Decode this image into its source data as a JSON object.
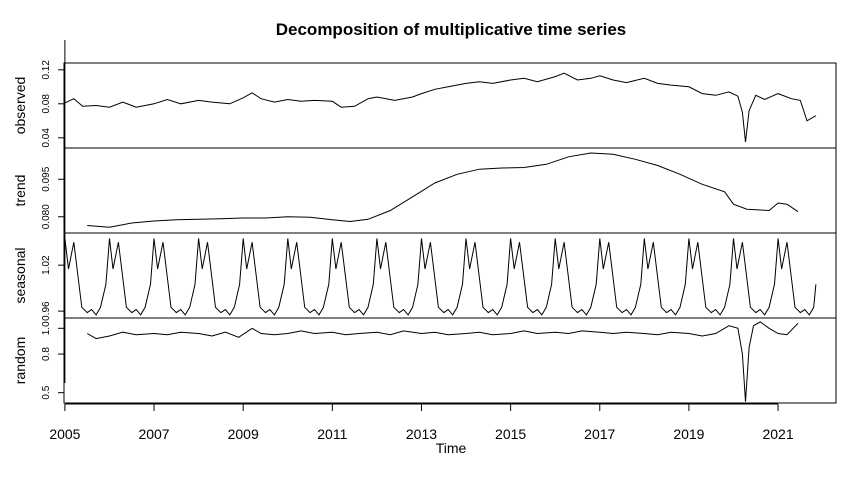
{
  "chart_data": {
    "type": "line",
    "title": "Decomposition of multiplicative time series",
    "xlabel": "Time",
    "xlim": [
      2004.98,
      2022.3
    ],
    "x_ticks": [
      2005,
      2007,
      2009,
      2011,
      2013,
      2015,
      2017,
      2019,
      2021
    ],
    "x_tick_labels": [
      "2005",
      "2007",
      "2009",
      "2011",
      "2013",
      "2015",
      "2017",
      "2019",
      "2021"
    ],
    "panels": [
      {
        "name": "observed",
        "ylabel": "observed",
        "ylim": [
          0.028,
          0.128
        ],
        "y_ticks": [
          0.04,
          0.08,
          0.12
        ],
        "y_tick_labels": [
          "0.04",
          "0.08",
          "0.12"
        ],
        "points": [
          [
            2005.0,
            0.081
          ],
          [
            2005.2,
            0.086
          ],
          [
            2005.4,
            0.077
          ],
          [
            2005.7,
            0.078
          ],
          [
            2006.0,
            0.076
          ],
          [
            2006.3,
            0.082
          ],
          [
            2006.6,
            0.076
          ],
          [
            2007.0,
            0.08
          ],
          [
            2007.3,
            0.085
          ],
          [
            2007.6,
            0.08
          ],
          [
            2008.0,
            0.084
          ],
          [
            2008.3,
            0.082
          ],
          [
            2008.7,
            0.08
          ],
          [
            2009.0,
            0.087
          ],
          [
            2009.2,
            0.093
          ],
          [
            2009.4,
            0.086
          ],
          [
            2009.7,
            0.082
          ],
          [
            2010.0,
            0.085
          ],
          [
            2010.3,
            0.083
          ],
          [
            2010.6,
            0.084
          ],
          [
            2011.0,
            0.083
          ],
          [
            2011.2,
            0.076
          ],
          [
            2011.5,
            0.077
          ],
          [
            2011.8,
            0.086
          ],
          [
            2012.0,
            0.088
          ],
          [
            2012.4,
            0.084
          ],
          [
            2012.8,
            0.088
          ],
          [
            2013.0,
            0.092
          ],
          [
            2013.3,
            0.097
          ],
          [
            2013.6,
            0.1
          ],
          [
            2014.0,
            0.104
          ],
          [
            2014.3,
            0.106
          ],
          [
            2014.6,
            0.104
          ],
          [
            2015.0,
            0.108
          ],
          [
            2015.3,
            0.11
          ],
          [
            2015.6,
            0.106
          ],
          [
            2016.0,
            0.112
          ],
          [
            2016.2,
            0.116
          ],
          [
            2016.5,
            0.108
          ],
          [
            2016.8,
            0.11
          ],
          [
            2017.0,
            0.113
          ],
          [
            2017.3,
            0.108
          ],
          [
            2017.6,
            0.105
          ],
          [
            2018.0,
            0.11
          ],
          [
            2018.3,
            0.104
          ],
          [
            2018.6,
            0.102
          ],
          [
            2019.0,
            0.1
          ],
          [
            2019.3,
            0.092
          ],
          [
            2019.6,
            0.09
          ],
          [
            2019.9,
            0.094
          ],
          [
            2020.1,
            0.089
          ],
          [
            2020.2,
            0.07
          ],
          [
            2020.27,
            0.035
          ],
          [
            2020.35,
            0.072
          ],
          [
            2020.5,
            0.09
          ],
          [
            2020.7,
            0.085
          ],
          [
            2021.0,
            0.092
          ],
          [
            2021.3,
            0.086
          ],
          [
            2021.5,
            0.084
          ],
          [
            2021.65,
            0.06
          ],
          [
            2021.85,
            0.066
          ]
        ]
      },
      {
        "name": "trend",
        "ylabel": "trend",
        "ylim": [
          0.0735,
          0.1075
        ],
        "y_ticks": [
          0.08,
          0.095
        ],
        "y_tick_labels": [
          "0.080",
          "0.095"
        ],
        "points": [
          [
            2005.5,
            0.0765
          ],
          [
            2006.0,
            0.0758
          ],
          [
            2006.5,
            0.0775
          ],
          [
            2007.0,
            0.0783
          ],
          [
            2007.5,
            0.0788
          ],
          [
            2008.0,
            0.079
          ],
          [
            2008.5,
            0.0792
          ],
          [
            2009.0,
            0.0795
          ],
          [
            2009.5,
            0.0795
          ],
          [
            2010.0,
            0.08
          ],
          [
            2010.5,
            0.0798
          ],
          [
            2011.0,
            0.0788
          ],
          [
            2011.4,
            0.0781
          ],
          [
            2011.8,
            0.079
          ],
          [
            2012.3,
            0.0825
          ],
          [
            2012.8,
            0.088
          ],
          [
            2013.3,
            0.0935
          ],
          [
            2013.8,
            0.097
          ],
          [
            2014.3,
            0.099
          ],
          [
            2014.8,
            0.0995
          ],
          [
            2015.3,
            0.0997
          ],
          [
            2015.8,
            0.101
          ],
          [
            2016.3,
            0.104
          ],
          [
            2016.8,
            0.1055
          ],
          [
            2017.3,
            0.105
          ],
          [
            2017.8,
            0.103
          ],
          [
            2018.3,
            0.1005
          ],
          [
            2018.8,
            0.097
          ],
          [
            2019.3,
            0.093
          ],
          [
            2019.8,
            0.09
          ],
          [
            2020.0,
            0.085
          ],
          [
            2020.3,
            0.083
          ],
          [
            2020.8,
            0.0825
          ],
          [
            2021.0,
            0.0855
          ],
          [
            2021.2,
            0.085
          ],
          [
            2021.45,
            0.082
          ]
        ]
      },
      {
        "name": "seasonal",
        "ylabel": "seasonal",
        "ylim": [
          0.951,
          1.062
        ],
        "y_ticks": [
          0.96,
          1.02
        ],
        "y_tick_labels": [
          "0.96",
          "1.02"
        ],
        "pattern_months": [
          0.0,
          0.08,
          0.2,
          0.38,
          0.5,
          0.6,
          0.7,
          0.8,
          0.92
        ],
        "pattern_values": [
          1.055,
          1.015,
          1.05,
          0.965,
          0.958,
          0.962,
          0.955,
          0.965,
          0.995
        ],
        "start": 2005.0,
        "end": 2021.85
      },
      {
        "name": "random",
        "ylabel": "random",
        "ylim": [
          0.42,
          1.08
        ],
        "y_ticks": [
          0.5,
          0.8,
          1.0
        ],
        "y_tick_labels": [
          "0.5",
          "0.8",
          "1.0"
        ],
        "points": [
          [
            2005.5,
            0.96
          ],
          [
            2005.7,
            0.92
          ],
          [
            2006.0,
            0.94
          ],
          [
            2006.3,
            0.97
          ],
          [
            2006.6,
            0.95
          ],
          [
            2007.0,
            0.96
          ],
          [
            2007.3,
            0.95
          ],
          [
            2007.6,
            0.97
          ],
          [
            2008.0,
            0.96
          ],
          [
            2008.3,
            0.94
          ],
          [
            2008.6,
            0.97
          ],
          [
            2008.9,
            0.93
          ],
          [
            2009.2,
            1.0
          ],
          [
            2009.4,
            0.96
          ],
          [
            2009.7,
            0.95
          ],
          [
            2010.0,
            0.96
          ],
          [
            2010.3,
            0.98
          ],
          [
            2010.6,
            0.96
          ],
          [
            2011.0,
            0.97
          ],
          [
            2011.3,
            0.95
          ],
          [
            2011.6,
            0.96
          ],
          [
            2012.0,
            0.97
          ],
          [
            2012.3,
            0.95
          ],
          [
            2012.6,
            0.98
          ],
          [
            2013.0,
            0.96
          ],
          [
            2013.3,
            0.97
          ],
          [
            2013.6,
            0.95
          ],
          [
            2014.0,
            0.96
          ],
          [
            2014.3,
            0.97
          ],
          [
            2014.6,
            0.95
          ],
          [
            2015.0,
            0.96
          ],
          [
            2015.3,
            0.98
          ],
          [
            2015.6,
            0.96
          ],
          [
            2016.0,
            0.97
          ],
          [
            2016.3,
            0.96
          ],
          [
            2016.6,
            0.98
          ],
          [
            2017.0,
            0.97
          ],
          [
            2017.3,
            0.96
          ],
          [
            2017.6,
            0.97
          ],
          [
            2018.0,
            0.96
          ],
          [
            2018.3,
            0.95
          ],
          [
            2018.6,
            0.97
          ],
          [
            2019.0,
            0.96
          ],
          [
            2019.3,
            0.94
          ],
          [
            2019.6,
            0.96
          ],
          [
            2019.9,
            1.02
          ],
          [
            2020.1,
            1.0
          ],
          [
            2020.2,
            0.8
          ],
          [
            2020.27,
            0.43
          ],
          [
            2020.35,
            0.85
          ],
          [
            2020.45,
            1.02
          ],
          [
            2020.6,
            1.05
          ],
          [
            2020.8,
            1.0
          ],
          [
            2021.0,
            0.96
          ],
          [
            2021.2,
            0.95
          ],
          [
            2021.45,
            1.04
          ]
        ]
      }
    ]
  }
}
